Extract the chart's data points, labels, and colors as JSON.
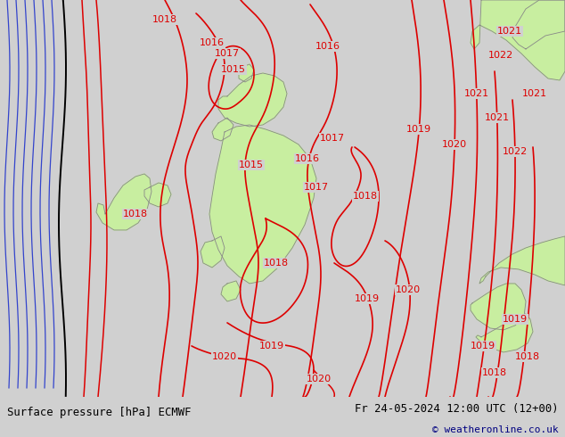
{
  "title_left": "Surface pressure [hPa] ECMWF",
  "title_right": "Fr 24-05-2024 12:00 UTC (12+00)",
  "copyright": "© weatheronline.co.uk",
  "background_color": "#d0d0d0",
  "land_color": "#c8eea0",
  "coast_color": "#888888",
  "isobar_red": "#dd0000",
  "isobar_blue": "#3344cc",
  "isobar_black": "#000000",
  "label_color": "#dd0000",
  "text_black": "#000000",
  "text_navy": "#000080",
  "bottom_bar": "#c8c8c8",
  "figsize": [
    6.34,
    4.9
  ],
  "dpi": 100
}
